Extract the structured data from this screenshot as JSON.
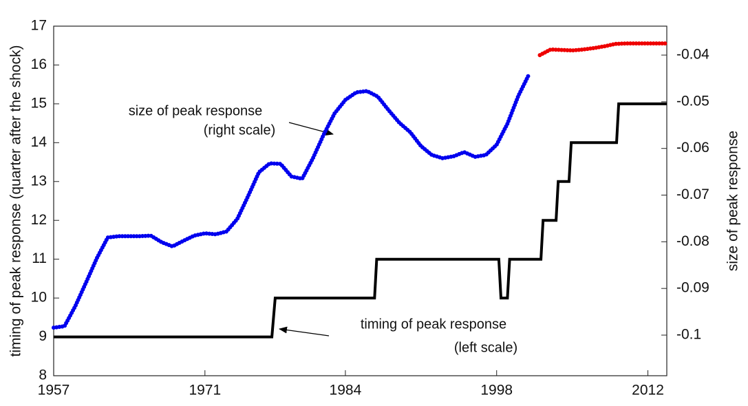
{
  "chart_data": {
    "type": "line",
    "y_label": "timing of peak response (quarter after the shock)",
    "y2_label": "size of peak response",
    "annotations": [
      "size of peak response",
      "(right scale)",
      "timing of peak response",
      "(left scale)"
    ],
    "xlim": [
      1957,
      2013.75
    ],
    "xticks": [
      1957,
      1971,
      1984,
      1998,
      2012
    ],
    "ylim": [
      8,
      17
    ],
    "yticks": [
      8,
      9,
      10,
      11,
      12,
      13,
      14,
      15,
      16,
      17
    ],
    "y2lim": [
      -0.1087,
      -0.0338
    ],
    "y2ticks": [
      -0.1,
      -0.09,
      -0.08,
      -0.07,
      -0.06,
      -0.05,
      -0.04
    ],
    "series": [
      {
        "color": "#000000",
        "style": "solid",
        "x": [
          1957,
          1977.2,
          1977.5,
          1986.7,
          1986.9,
          1998.2,
          1998.4,
          1999.0,
          1999.2,
          2002.1,
          2002.3,
          2003.5,
          2003.7,
          2004.7,
          2004.9,
          2009.1,
          2009.3,
          2013.75
        ],
        "values": [
          9,
          9,
          10,
          10,
          11,
          11,
          10,
          10,
          11,
          11,
          12,
          12,
          13,
          13,
          14,
          14,
          15,
          15
        ]
      },
      {
        "color": "#0000ee",
        "style": "dotted",
        "axis": "y2",
        "x": [
          1957,
          1958,
          1959,
          1960,
          1961,
          1962,
          1963,
          1964,
          1965,
          1966,
          1967,
          1968,
          1969,
          1970,
          1971,
          1972,
          1973,
          1974,
          1975,
          1976,
          1977,
          1978,
          1979,
          1980,
          1981,
          1982,
          1983,
          1984,
          1985,
          1986,
          1987,
          1988,
          1989,
          1990,
          1991,
          1992,
          1993,
          1994,
          1995,
          1996,
          1997,
          1998,
          1999,
          2000,
          2001
        ],
        "values": [
          -0.0984,
          -0.0981,
          -0.0938,
          -0.0887,
          -0.0835,
          -0.0791,
          -0.0788,
          -0.0788,
          -0.0788,
          -0.0787,
          -0.0801,
          -0.081,
          -0.0798,
          -0.0787,
          -0.0782,
          -0.0784,
          -0.0778,
          -0.0751,
          -0.0702,
          -0.0651,
          -0.0632,
          -0.0633,
          -0.066,
          -0.0665,
          -0.0621,
          -0.057,
          -0.0525,
          -0.0496,
          -0.048,
          -0.0477,
          -0.0489,
          -0.0518,
          -0.0545,
          -0.0565,
          -0.0595,
          -0.0614,
          -0.0621,
          -0.0617,
          -0.0608,
          -0.0618,
          -0.0614,
          -0.0592,
          -0.0547,
          -0.0488,
          -0.0441
        ]
      },
      {
        "color": "#ee0000",
        "style": "dotted",
        "axis": "y2",
        "x": [
          2002,
          2003,
          2004,
          2005,
          2006,
          2007,
          2008,
          2009,
          2010,
          2011,
          2012,
          2013.75
        ],
        "values": [
          -0.04,
          -0.0388,
          -0.0389,
          -0.039,
          -0.0388,
          -0.0385,
          -0.0381,
          -0.0376,
          -0.0375,
          -0.0375,
          -0.0375,
          -0.0375
        ]
      }
    ]
  }
}
